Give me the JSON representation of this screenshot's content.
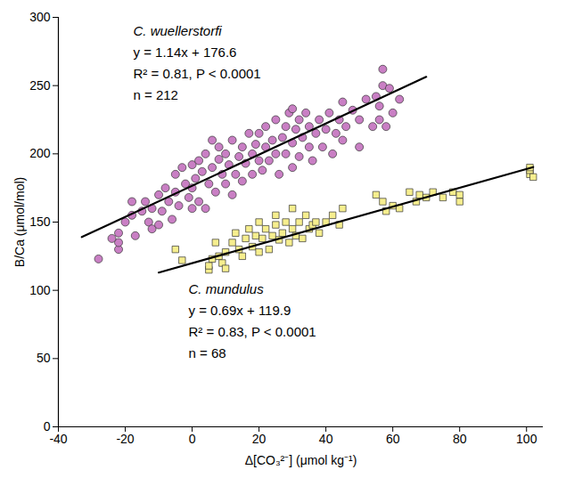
{
  "chart_data": {
    "type": "scatter",
    "x_label": "Δ[CO₃²⁻] (μmol kg⁻¹)",
    "y_label": "B/Ca (μmol/mol)",
    "xlim": [
      -40,
      105
    ],
    "ylim": [
      0,
      300
    ],
    "xticks": [
      -40,
      -20,
      0,
      20,
      40,
      60,
      80,
      100
    ],
    "yticks": [
      0,
      50,
      100,
      150,
      200,
      250,
      300
    ],
    "grid": false,
    "series": [
      {
        "name": "C. wuellerstorfi",
        "color": "#c97fc4",
        "marker": "circle",
        "annotation": [
          "y = 1.14x + 176.6",
          "R² = 0.81, P < 0.0001",
          "n = 212"
        ],
        "fit": {
          "x": [
            -33,
            70
          ],
          "values": [
            139.0,
            256.4
          ]
        },
        "x": [
          -28,
          -22,
          -22,
          -22,
          -20,
          -18,
          -17,
          -15,
          -14,
          -13,
          -12,
          -12,
          -10,
          -10,
          -9,
          -8,
          -7,
          -6,
          -5,
          -5,
          -4,
          -3,
          -2,
          -1,
          0,
          0,
          0,
          1,
          2,
          2,
          3,
          4,
          4,
          5,
          6,
          7,
          8,
          8,
          9,
          10,
          10,
          11,
          12,
          12,
          13,
          14,
          15,
          15,
          16,
          17,
          18,
          18,
          19,
          20,
          20,
          21,
          22,
          22,
          23,
          24,
          25,
          25,
          26,
          27,
          28,
          28,
          29,
          30,
          30,
          31,
          32,
          32,
          33,
          34,
          35,
          35,
          36,
          37,
          38,
          39,
          40,
          41,
          42,
          43,
          44,
          45,
          46,
          48,
          50,
          50,
          52,
          54,
          55,
          56,
          56,
          57,
          57,
          58,
          59,
          60,
          62,
          -24,
          -18,
          6,
          30,
          45
        ],
        "values": [
          123,
          130,
          135,
          142,
          150,
          155,
          140,
          158,
          165,
          150,
          145,
          160,
          148,
          170,
          158,
          175,
          165,
          152,
          185,
          172,
          162,
          190,
          178,
          168,
          160,
          175,
          192,
          182,
          165,
          195,
          187,
          160,
          200,
          178,
          190,
          172,
          196,
          205,
          185,
          178,
          200,
          192,
          210,
          170,
          185,
          198,
          205,
          180,
          193,
          215,
          200,
          185,
          207,
          195,
          215,
          188,
          205,
          220,
          195,
          210,
          200,
          225,
          185,
          212,
          200,
          220,
          230,
          208,
          190,
          218,
          198,
          225,
          212,
          230,
          205,
          220,
          195,
          215,
          225,
          205,
          218,
          230,
          200,
          215,
          225,
          210,
          220,
          232,
          205,
          225,
          240,
          220,
          242,
          225,
          235,
          262,
          250,
          220,
          248,
          230,
          240,
          138,
          165,
          210,
          233,
          238
        ]
      },
      {
        "name": "C. mundulus",
        "color": "#f6ee8e",
        "marker": "square",
        "annotation": [
          "y = 0.69x + 119.9",
          "R² = 0.83, P < 0.0001",
          "n = 68"
        ],
        "fit": {
          "x": [
            -10,
            102
          ],
          "values": [
            113.0,
            190.3
          ]
        },
        "x": [
          -5,
          -3,
          5,
          5,
          6,
          7,
          8,
          9,
          10,
          10,
          12,
          13,
          14,
          15,
          16,
          17,
          18,
          19,
          20,
          20,
          21,
          22,
          23,
          24,
          25,
          25,
          26,
          27,
          28,
          29,
          30,
          30,
          31,
          32,
          33,
          34,
          35,
          36,
          37,
          38,
          40,
          42,
          44,
          45,
          55,
          57,
          58,
          60,
          62,
          65,
          67,
          68,
          70,
          72,
          75,
          78,
          80,
          80,
          101,
          101,
          101,
          102
        ],
        "values": [
          130,
          122,
          115,
          118,
          123,
          135,
          125,
          120,
          116,
          128,
          135,
          142,
          130,
          125,
          138,
          145,
          132,
          140,
          150,
          128,
          138,
          145,
          130,
          140,
          148,
          155,
          137,
          142,
          150,
          135,
          145,
          160,
          140,
          150,
          138,
          155,
          145,
          148,
          150,
          142,
          150,
          155,
          148,
          160,
          170,
          165,
          158,
          162,
          160,
          172,
          165,
          170,
          168,
          172,
          168,
          172,
          165,
          170,
          185,
          188,
          190,
          183
        ]
      }
    ]
  }
}
